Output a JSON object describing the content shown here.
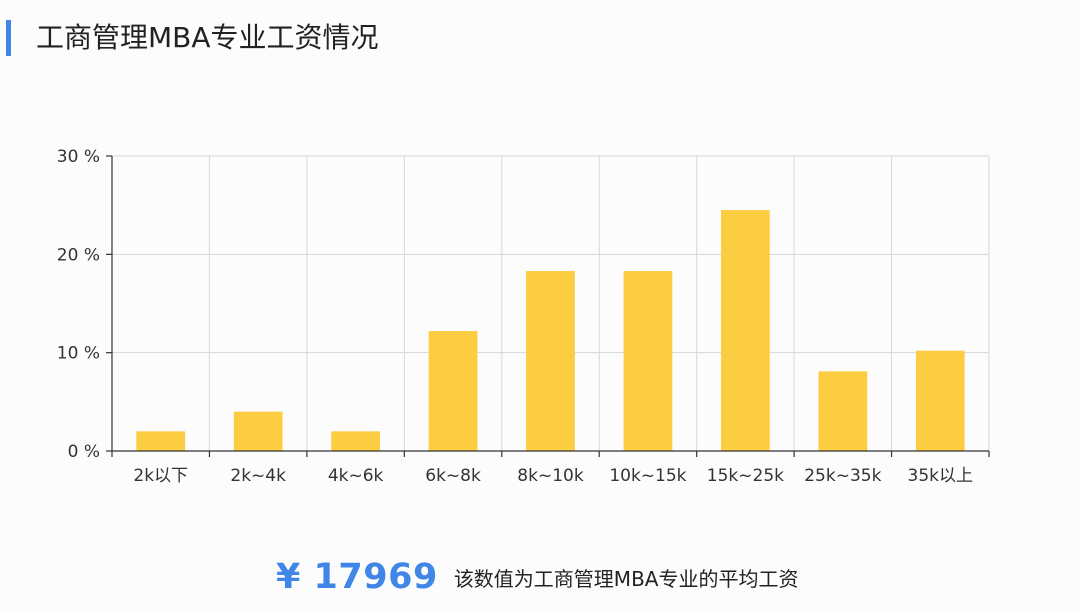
{
  "header": {
    "title": "工商管理MBA专业工资情况"
  },
  "chart_data": {
    "type": "bar",
    "title": "",
    "xlabel": "",
    "ylabel": "",
    "categories": [
      "2k以下",
      "2k~4k",
      "4k~6k",
      "6k~8k",
      "8k~10k",
      "10k~15k",
      "15k~25k",
      "25k~35k",
      "35k以上"
    ],
    "values": [
      2,
      4,
      2,
      12.2,
      18.3,
      18.3,
      24.5,
      8.1,
      10.2
    ],
    "unit": "%",
    "ylim": [
      0,
      30
    ],
    "yticks": [
      0,
      10,
      20,
      30
    ],
    "ytick_labels": [
      "0 %",
      "10 %",
      "20 %",
      "30 %"
    ],
    "grid": true,
    "bar_color": "#fdcd41"
  },
  "summary": {
    "avg_value": "¥ 17969",
    "caption": "该数值为工商管理MBA专业的平均工资"
  },
  "colors": {
    "accent": "#3f86e6",
    "bar": "#fdcd41"
  }
}
